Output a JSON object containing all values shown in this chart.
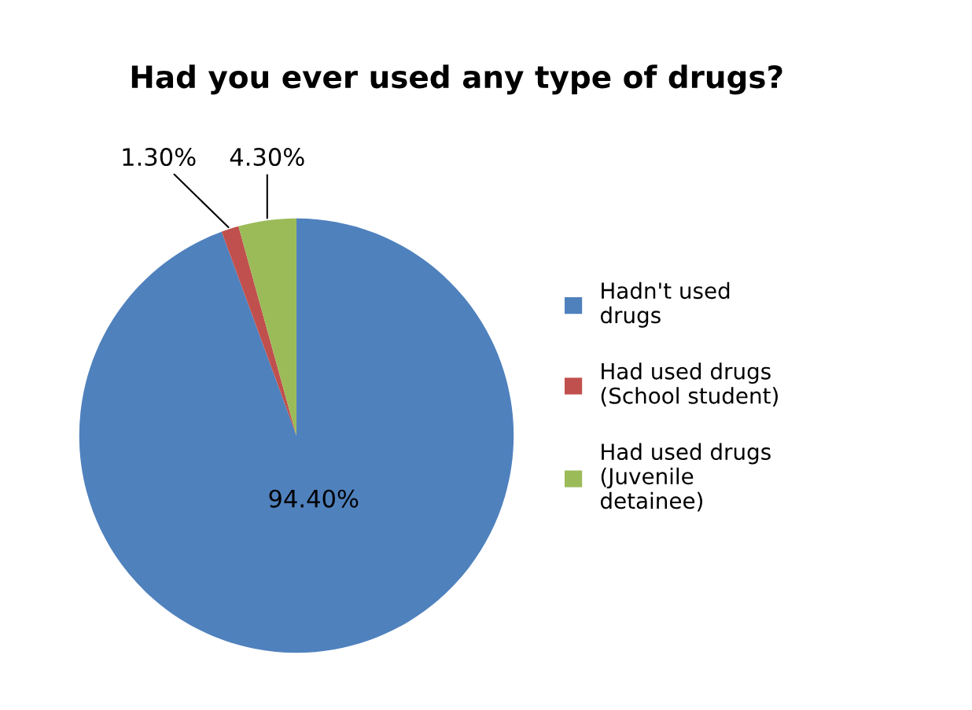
{
  "chart_data": {
    "type": "pie",
    "title": "Had you ever used any type of drugs?",
    "categories": [
      "Hadn't used drugs",
      "Had used drugs (School student)",
      "Had used drugs (Juvenile detainee)"
    ],
    "values": [
      94.4,
      1.3,
      4.3
    ],
    "colors": [
      "#4f81bd",
      "#c0504d",
      "#9bbb59"
    ],
    "value_labels": [
      "94.40%",
      "1.30%",
      "4.30%"
    ],
    "legend": "right"
  }
}
